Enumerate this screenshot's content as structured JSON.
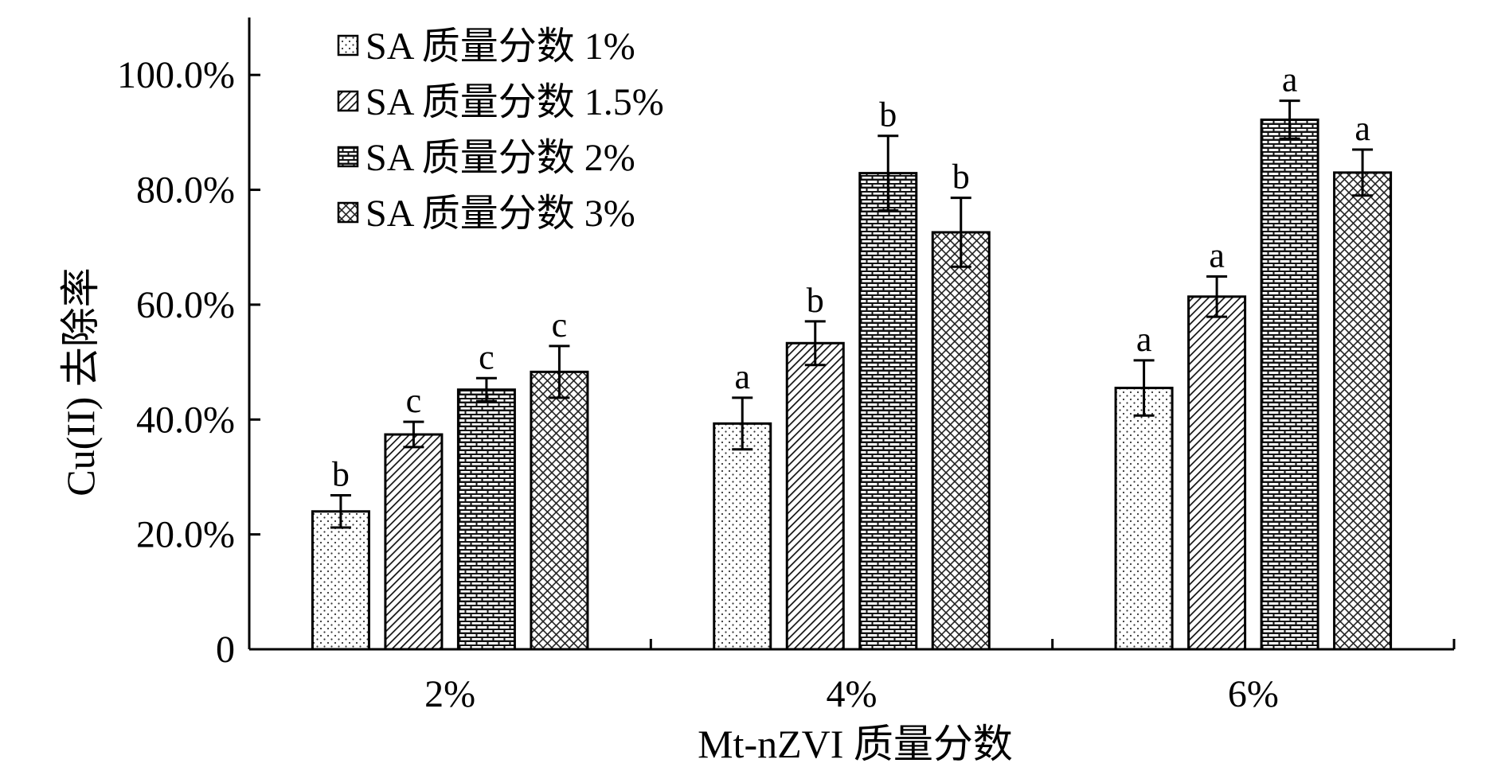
{
  "chart_data": {
    "type": "bar",
    "title": "",
    "xlabel": "Mt-nZVI 质量分数",
    "ylabel": "Cu(II) 去除率",
    "categories": [
      "2%",
      "4%",
      "6%"
    ],
    "ylim": [
      0,
      1.1
    ],
    "yticks": [
      0,
      0.2,
      0.4,
      0.6,
      0.8,
      1.0
    ],
    "ytick_labels": [
      "0",
      "20.0%",
      "40.0%",
      "60.0%",
      "80.0%",
      "100.0%"
    ],
    "grid": false,
    "legend_position": "top-left",
    "series": [
      {
        "name": "SA 质量分数 1%",
        "pattern": "dots",
        "values": [
          0.24,
          0.393,
          0.455
        ],
        "errors": [
          0.028,
          0.045,
          0.048
        ],
        "labels": [
          "b",
          "a",
          "a"
        ]
      },
      {
        "name": "SA 质量分数 1.5%",
        "pattern": "diag",
        "values": [
          0.374,
          0.533,
          0.614
        ],
        "errors": [
          0.022,
          0.038,
          0.035
        ],
        "labels": [
          "c",
          "b",
          "a"
        ]
      },
      {
        "name": "SA 质量分数 2%",
        "pattern": "brick",
        "values": [
          0.452,
          0.829,
          0.922
        ],
        "errors": [
          0.02,
          0.065,
          0.033
        ],
        "labels": [
          "c",
          "b",
          "a"
        ]
      },
      {
        "name": "SA 质量分数 3%",
        "pattern": "cross",
        "values": [
          0.483,
          0.726,
          0.83
        ],
        "errors": [
          0.045,
          0.06,
          0.04
        ],
        "labels": [
          "c",
          "b",
          "a"
        ]
      }
    ]
  }
}
